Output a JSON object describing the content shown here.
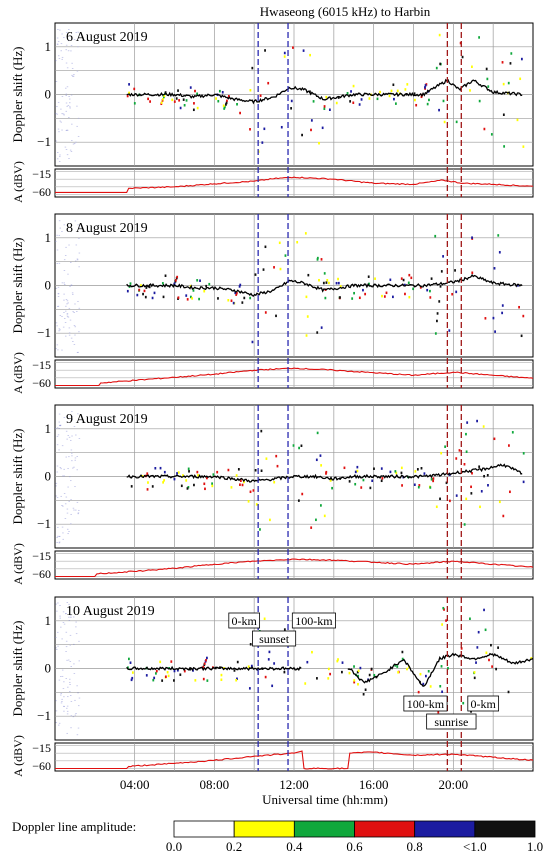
{
  "title": "Hwaseong (6015 kHz) to Harbin",
  "chart_data": {
    "type": "line",
    "title": "Hwaseong (6015 kHz) to Harbin",
    "xlabel": "Universal time (hh:mm)",
    "xlim": [
      0,
      24
    ],
    "x_tick_labels": [
      "04:00",
      "08:00",
      "12:00",
      "16:00",
      "20:00"
    ],
    "x_tick_values": [
      4,
      8,
      12,
      16,
      20
    ],
    "doppler_ylabel": "Doppler shift (Hz)",
    "doppler_ylim": [
      -1.5,
      1.5
    ],
    "doppler_yticks": [
      "1",
      "0",
      "−1"
    ],
    "amp_ylabel": "A (dBV)",
    "amp_yticks": [
      "−15",
      "−60"
    ],
    "grid": true,
    "markers": {
      "sunset_lines_UT": [
        10.2,
        11.7
      ],
      "sunrise_lines_UT": [
        19.7,
        20.4
      ],
      "sunset_color": "#2a2ab0",
      "sunrise_color": "#a01818"
    },
    "panels": [
      {
        "date": "6 August 2019",
        "doppler_series": {
          "name": "",
          "x": [
            3.6,
            5,
            6,
            7,
            8,
            9,
            10,
            11,
            11.8,
            12.5,
            13.5,
            15,
            17,
            18.5,
            19.7,
            20.3,
            21,
            22,
            23.5
          ],
          "y": [
            0,
            0,
            0,
            -0.05,
            0,
            -0.1,
            -0.15,
            -0.05,
            0.15,
            0.1,
            -0.1,
            0,
            0,
            0,
            0.3,
            0.1,
            0.3,
            0.05,
            0
          ]
        },
        "amplitude_dBV": {
          "x": [
            0,
            3.6,
            3.7,
            6,
            8,
            10,
            11,
            12,
            14,
            16,
            18,
            19.5,
            20.5,
            22,
            24
          ],
          "y": [
            -56,
            -56,
            -48,
            -45,
            -39,
            -34,
            -29,
            -26,
            -30,
            -38,
            -40,
            -32,
            -38,
            -40,
            -44
          ]
        }
      },
      {
        "date": "8 August 2019",
        "doppler_series": {
          "name": "",
          "x": [
            3.6,
            5,
            6,
            7,
            8,
            9,
            10,
            11,
            11.8,
            12.5,
            13.5,
            15,
            17,
            18.5,
            19.7,
            20.3,
            21,
            22,
            23.5
          ],
          "y": [
            0,
            0,
            0,
            -0.05,
            -0.05,
            -0.1,
            -0.2,
            -0.1,
            0.1,
            0.05,
            -0.1,
            0,
            0,
            0,
            0.05,
            0.1,
            0.2,
            0.05,
            0
          ]
        },
        "amplitude_dBV": {
          "x": [
            0,
            2.2,
            2.3,
            4,
            6,
            8,
            10,
            12,
            14,
            16,
            18,
            20,
            22,
            24
          ],
          "y": [
            -60,
            -60,
            -55,
            -50,
            -44,
            -38,
            -30,
            -26,
            -30,
            -35,
            -40,
            -34,
            -40,
            -46
          ]
        }
      },
      {
        "date": "9 August 2019",
        "doppler_series": {
          "name": "",
          "x": [
            3.6,
            5,
            6,
            7,
            8,
            9,
            10,
            11,
            12,
            13,
            14,
            15,
            17,
            18.5,
            19.7,
            20.5,
            21.5,
            22.5,
            23.5
          ],
          "y": [
            0,
            0,
            0,
            0,
            0,
            -0.05,
            -0.1,
            -0.05,
            0,
            0,
            -0.05,
            0,
            0,
            0,
            0.05,
            0.1,
            0.15,
            0.25,
            0.05
          ]
        },
        "amplitude_dBV": {
          "x": [
            0,
            2.0,
            2.1,
            4,
            6,
            8,
            10,
            12,
            14,
            16,
            18,
            20,
            22,
            24
          ],
          "y": [
            -60,
            -60,
            -55,
            -50,
            -44,
            -36,
            -30,
            -26,
            -28,
            -32,
            -36,
            -30,
            -36,
            -42
          ]
        }
      },
      {
        "date": "10 August 2019",
        "doppler_series": {
          "name": "",
          "x": [
            3.6,
            5,
            6,
            7,
            8,
            9,
            10,
            11,
            12,
            12.3,
            14.8,
            15.5,
            16.5,
            17.5,
            18.5,
            19.3,
            20,
            21,
            22,
            23,
            24
          ],
          "y": [
            0,
            0,
            0,
            0,
            0,
            0,
            0,
            0,
            0,
            0,
            0,
            -0.3,
            -0.1,
            0.2,
            -0.4,
            0.2,
            0.3,
            0.2,
            0.3,
            0.1,
            0.2
          ]
        },
        "amplitude_dBV": {
          "x": [
            0,
            3.6,
            3.7,
            6,
            8,
            10,
            12,
            12.4,
            12.5,
            14.7,
            14.8,
            16,
            18,
            20,
            22,
            24
          ],
          "y": [
            -60,
            -60,
            -56,
            -50,
            -44,
            -36,
            -30,
            -26,
            -60,
            -60,
            -30,
            -28,
            -34,
            -32,
            -38,
            -44
          ]
        },
        "annotations": {
          "sunset_label": "sunset",
          "sunset_left": "0-km",
          "sunset_right": "100-km",
          "sunrise_label": "sunrise",
          "sunrise_left": "100-km",
          "sunrise_right": "0-km"
        }
      }
    ],
    "colorbar": {
      "label": "Doppler line amplitude:",
      "tick_labels": [
        "0.0",
        "0.2",
        "0.4",
        "0.6",
        "0.8",
        "<1.0",
        "1.0"
      ],
      "colors": [
        "#ffffff",
        "#ffff00",
        "#10a83c",
        "#e01010",
        "#1c1ca0",
        "#111111"
      ]
    }
  }
}
